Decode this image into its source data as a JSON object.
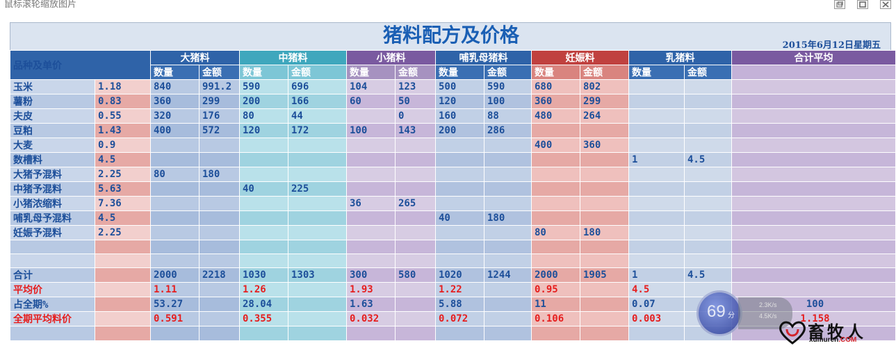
{
  "window": {
    "title": "鼠标滚轮缩放图片"
  },
  "sheet": {
    "title": "猪料配方及价格",
    "date": "2015年6月12日星期五",
    "header_name": "品种及单价",
    "qty_label": "数量",
    "amt_label": "金额",
    "groups": [
      {
        "label": "大猪料",
        "color": "#2f63a8"
      },
      {
        "label": "中猪料",
        "color": "#3fa7bd"
      },
      {
        "label": "小猪料",
        "color": "#7a5aa0"
      },
      {
        "label": "哺乳母猪料",
        "color": "#2f63a8"
      },
      {
        "label": "妊娠料",
        "color": "#c0413f"
      },
      {
        "label": "乳猪料",
        "color": "#2f63a8"
      },
      {
        "label": "合计平均",
        "color": "#7a5aa0"
      }
    ],
    "rows": [
      {
        "name": "玉米",
        "price": "1.18",
        "cells": [
          "840",
          "991.2",
          "590",
          "696",
          "104",
          "123",
          "500",
          "590",
          "680",
          "802",
          "",
          ""
        ],
        "total": ""
      },
      {
        "name": "薯粉",
        "price": "0.83",
        "cells": [
          "360",
          "299",
          "200",
          "166",
          "60",
          "50",
          "120",
          "100",
          "360",
          "299",
          "",
          ""
        ],
        "total": ""
      },
      {
        "name": "夫皮",
        "price": "0.55",
        "cells": [
          "320",
          "176",
          "80",
          "44",
          "",
          "0",
          "160",
          "88",
          "480",
          "264",
          "",
          ""
        ],
        "total": ""
      },
      {
        "name": "豆粕",
        "price": "1.43",
        "cells": [
          "400",
          "572",
          "120",
          "172",
          "100",
          "143",
          "200",
          "286",
          "",
          "",
          "",
          ""
        ],
        "total": ""
      },
      {
        "name": "大麦",
        "price": "0.9",
        "cells": [
          "",
          "",
          "",
          "",
          "",
          "",
          "",
          "",
          "400",
          "360",
          "",
          ""
        ],
        "total": ""
      },
      {
        "name": "数槽料",
        "price": "4.5",
        "cells": [
          "",
          "",
          "",
          "",
          "",
          "",
          "",
          "",
          "",
          "",
          "1",
          "4.5"
        ],
        "total": ""
      },
      {
        "name": "大猪予混料",
        "price": "2.25",
        "cells": [
          "80",
          "180",
          "",
          "",
          "",
          "",
          "",
          "",
          "",
          "",
          "",
          ""
        ],
        "total": ""
      },
      {
        "name": "中猪予混料",
        "price": "5.63",
        "cells": [
          "",
          "",
          "40",
          "225",
          "",
          "",
          "",
          "",
          "",
          "",
          "",
          ""
        ],
        "total": ""
      },
      {
        "name": "小猪浓缩料",
        "price": "7.36",
        "cells": [
          "",
          "",
          "",
          "",
          "36",
          "265",
          "",
          "",
          "",
          "",
          "",
          ""
        ],
        "total": ""
      },
      {
        "name": "哺乳母予混料",
        "price": "4.5",
        "cells": [
          "",
          "",
          "",
          "",
          "",
          "",
          "40",
          "180",
          "",
          "",
          "",
          ""
        ],
        "total": ""
      },
      {
        "name": "妊娠予混料",
        "price": "2.25",
        "cells": [
          "",
          "",
          "",
          "",
          "",
          "",
          "",
          "",
          "80",
          "180",
          "",
          ""
        ],
        "total": ""
      },
      {
        "name": "",
        "price": "",
        "cells": [
          "",
          "",
          "",
          "",
          "",
          "",
          "",
          "",
          "",
          "",
          "",
          ""
        ],
        "total": ""
      },
      {
        "name": "",
        "price": "",
        "cells": [
          "",
          "",
          "",
          "",
          "",
          "",
          "",
          "",
          "",
          "",
          "",
          ""
        ],
        "total": ""
      },
      {
        "name": "合计",
        "price": "",
        "cells": [
          "2000",
          "2218",
          "1030",
          "1303",
          "300",
          "580",
          "1020",
          "1244",
          "2000",
          "1905",
          "1",
          "4.5"
        ],
        "total": ""
      },
      {
        "name": "平均价",
        "price": "",
        "red": true,
        "cells": [
          "1.11",
          "",
          "1.26",
          "",
          "1.93",
          "",
          "1.22",
          "",
          "0.95",
          "",
          "4.5",
          ""
        ],
        "total": ""
      },
      {
        "name": "占全期%",
        "price": "",
        "cells": [
          "53.27",
          "",
          "28.04",
          "",
          "1.63",
          "",
          "5.88",
          "",
          "11",
          "",
          "0.07",
          ""
        ],
        "total": "100"
      },
      {
        "name": "全期平均料价",
        "price": "",
        "red": true,
        "cells": [
          "0.591",
          "",
          "0.355",
          "",
          "0.032",
          "",
          "0.072",
          "",
          "0.106",
          "",
          "0.003",
          ""
        ],
        "total": "1.158"
      },
      {
        "name": "",
        "price": "",
        "cells": [
          "",
          "",
          "",
          "",
          "",
          "",
          "",
          "",
          "",
          "",
          "",
          ""
        ],
        "total": ""
      }
    ]
  },
  "overlay": {
    "score": "69",
    "score_unit": "分",
    "speed_up": "2.3K/s",
    "speed_down": "4.5K/s"
  },
  "logo": {
    "cn": "畜牧人",
    "en": "xumuren",
    "en_suffix": ".COM"
  },
  "colors": {
    "blue_dark": "#2f63a8",
    "teal": "#3fa7bd",
    "purple": "#7a5aa0",
    "red": "#c0413f",
    "text_blue": "#1d4f9a",
    "text_red": "#e61e1e"
  }
}
